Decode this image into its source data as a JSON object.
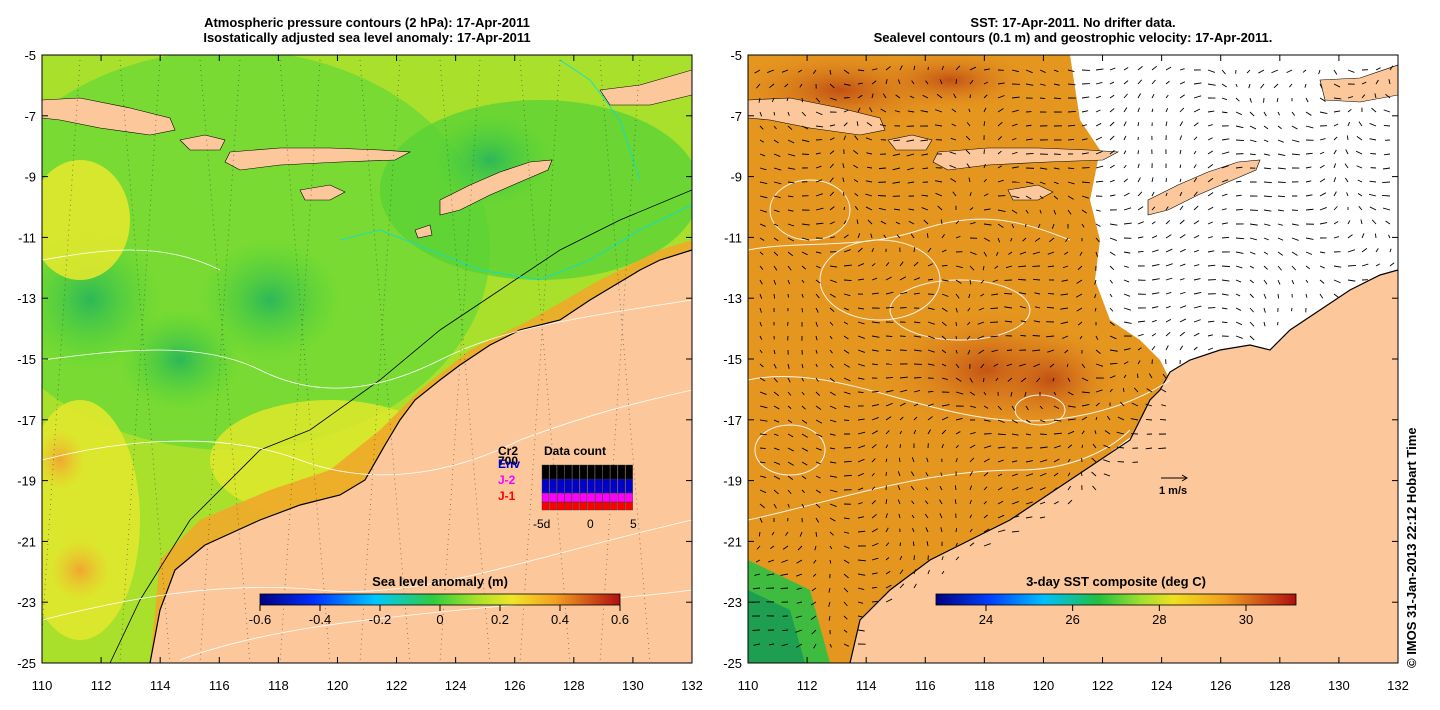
{
  "left_panel": {
    "title_line1": "Atmospheric pressure contours (2 hPa): 17-Apr-2011",
    "title_line2": "Isostatically adjusted sea level anomaly: 17-Apr-2011",
    "colorbar_label": "Sea level anomaly (m)",
    "colorbar_ticks": [
      "-0.6",
      "-0.4",
      "-0.2",
      "0",
      "0.2",
      "0.4",
      "0.6"
    ],
    "legend": {
      "title": "Data count",
      "entries": [
        {
          "label": "Cr2",
          "color": "#000000"
        },
        {
          "label": "700",
          "color": "#000000"
        },
        {
          "label": "Env",
          "color": "#0000cc"
        },
        {
          "label": "J-2",
          "color": "#ff00ff"
        },
        {
          "label": "J-1",
          "color": "#ff0000"
        }
      ],
      "axis_ticks": [
        "-5d",
        "0",
        "5"
      ]
    }
  },
  "right_panel": {
    "title_line1": "SST: 17-Apr-2011. No drifter data.",
    "title_line2": "Sealevel contours (0.1 m) and geostrophic velocity: 17-Apr-2011.",
    "colorbar_label": "3-day SST composite (deg C)",
    "colorbar_ticks": [
      "24",
      "26",
      "28",
      "30"
    ],
    "scale_label": "1 m/s"
  },
  "axes": {
    "x_ticks": [
      "110",
      "112",
      "114",
      "116",
      "118",
      "120",
      "122",
      "124",
      "126",
      "128",
      "130",
      "132"
    ],
    "y_ticks": [
      "-5",
      "-7",
      "-9",
      "-11",
      "-13",
      "-15",
      "-17",
      "-19",
      "-21",
      "-23",
      "-25"
    ]
  },
  "credit": "© IMOS 31-Jan-2013 22:12 Hobart Time",
  "colors": {
    "land": "#fcc89b",
    "sst_warm": "#e59020",
    "sst_hot": "#c84a10",
    "sla_green": "#49d23a",
    "sla_yellow": "#e6ea2a"
  }
}
